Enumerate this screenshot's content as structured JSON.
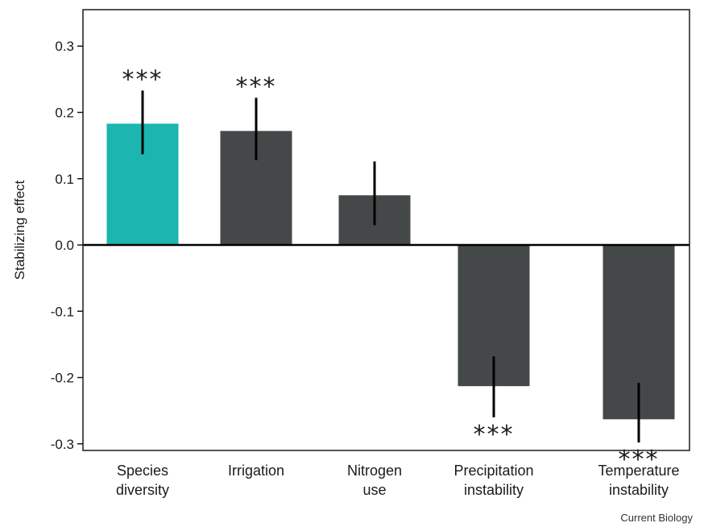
{
  "chart_data": {
    "type": "bar",
    "categories": [
      [
        "Species",
        "diversity"
      ],
      [
        "Irrigation"
      ],
      [
        "Nitrogen",
        "use"
      ],
      [
        "Precipitation",
        "instability"
      ],
      [
        "Temperature",
        "instability"
      ]
    ],
    "values": [
      0.183,
      0.172,
      0.075,
      -0.213,
      -0.263
    ],
    "error_low": [
      0.137,
      0.128,
      0.03,
      -0.26,
      -0.298
    ],
    "error_high": [
      0.233,
      0.222,
      0.126,
      -0.168,
      -0.208
    ],
    "significance": [
      "***",
      "***",
      "",
      "***",
      "***"
    ],
    "bar_colors": [
      "#1cb5b0",
      "#454849",
      "#454849",
      "#454849",
      "#454849"
    ],
    "ylabel": "Stabilizing effect",
    "ylim": [
      -0.31,
      0.355
    ],
    "yticks": [
      0.3,
      0.2,
      0.1,
      0.0,
      -0.1,
      -0.2,
      -0.3
    ],
    "ytick_labels": [
      "0.3",
      "0.2",
      "0.1",
      "0.0",
      "-0.1",
      "-0.2",
      "-0.3"
    ],
    "grid": false,
    "zero_line": true
  },
  "source": "Current Biology"
}
